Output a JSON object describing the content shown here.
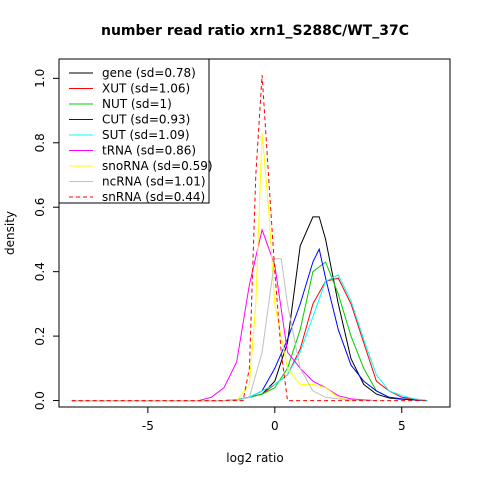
{
  "chart_data": {
    "type": "line",
    "title": "number read ratio xrn1_S288C/WT_37C",
    "xlabel": "log2 ratio",
    "ylabel": "density",
    "xlim": [
      -8.5,
      6.9
    ],
    "ylim": [
      -0.02,
      1.06
    ],
    "xticks": [
      -5,
      0,
      5
    ],
    "yticks": [
      0.0,
      0.2,
      0.4,
      0.6,
      0.8,
      1.0
    ],
    "xtick_labels": [
      "-5",
      "0",
      "5"
    ],
    "ytick_labels": [
      "0.0",
      "0.2",
      "0.4",
      "0.6",
      "0.8",
      "1.0"
    ],
    "grid": false,
    "legend_position": "top-left",
    "series": [
      {
        "name": "gene (sd=0.78)",
        "color": "#000000",
        "dash": "solid",
        "x": [
          -8,
          -2.5,
          -2,
          -1.5,
          -1,
          -0.5,
          0,
          0.5,
          1,
          1.5,
          1.75,
          2,
          2.5,
          3,
          3.5,
          4,
          4.5,
          5,
          5.5,
          6
        ],
        "y": [
          0,
          0,
          0,
          0.002,
          0.01,
          0.02,
          0.06,
          0.18,
          0.48,
          0.57,
          0.57,
          0.5,
          0.3,
          0.13,
          0.05,
          0.02,
          0.008,
          0.004,
          0.002,
          0
        ]
      },
      {
        "name": "XUT (sd=1.06)",
        "color": "#ff0000",
        "dash": "solid",
        "x": [
          -8,
          -2.5,
          -2,
          -1.5,
          -1,
          -0.5,
          0,
          0.5,
          1,
          1.5,
          2,
          2.5,
          3,
          3.5,
          4,
          4.5,
          5,
          5.5,
          6
        ],
        "y": [
          0,
          0,
          0,
          0.003,
          0.01,
          0.02,
          0.05,
          0.08,
          0.16,
          0.3,
          0.37,
          0.38,
          0.3,
          0.18,
          0.06,
          0.03,
          0.01,
          0.005,
          0
        ]
      },
      {
        "name": "NUT (sd=1)",
        "color": "#00cc00",
        "dash": "solid",
        "x": [
          -8,
          -2.5,
          -2,
          -1.5,
          -1,
          -0.5,
          0,
          0.5,
          1,
          1.5,
          2,
          2.5,
          3,
          3.5,
          4,
          4.5,
          5,
          5.5,
          6
        ],
        "y": [
          0,
          0,
          0,
          0.002,
          0.01,
          0.02,
          0.04,
          0.1,
          0.22,
          0.4,
          0.43,
          0.33,
          0.2,
          0.1,
          0.03,
          0.01,
          0.005,
          0.002,
          0
        ]
      },
      {
        "name": "CUT (sd=0.93)",
        "color": "#0000ff",
        "dash": "solid",
        "x": [
          -8,
          -2.5,
          -2,
          -1.5,
          -1,
          -0.5,
          0,
          0.5,
          1,
          1.5,
          1.75,
          2,
          2.5,
          3,
          3.5,
          4,
          4.5,
          5,
          5.5,
          6
        ],
        "y": [
          0,
          0,
          0,
          0.003,
          0.01,
          0.03,
          0.1,
          0.19,
          0.3,
          0.43,
          0.47,
          0.38,
          0.22,
          0.11,
          0.06,
          0.03,
          0.01,
          0.005,
          0.002,
          0
        ]
      },
      {
        "name": "SUT (sd=1.09)",
        "color": "#00ffff",
        "dash": "solid",
        "x": [
          -8,
          -2.5,
          -2,
          -1.5,
          -1,
          -0.5,
          0,
          0.5,
          1,
          1.5,
          2,
          2.5,
          3,
          3.5,
          4,
          4.5,
          5,
          5.5,
          6
        ],
        "y": [
          0,
          0,
          0,
          0.003,
          0.01,
          0.03,
          0.05,
          0.08,
          0.15,
          0.26,
          0.37,
          0.39,
          0.31,
          0.19,
          0.08,
          0.03,
          0.015,
          0.005,
          0
        ]
      },
      {
        "name": "tRNA (sd=0.86)",
        "color": "#ff00ff",
        "dash": "solid",
        "x": [
          -8,
          -3,
          -2.5,
          -2,
          -1.5,
          -1,
          -0.5,
          0,
          0.5,
          1,
          1.5,
          2,
          2.5,
          3,
          3.5,
          4
        ],
        "y": [
          0,
          0,
          0.01,
          0.04,
          0.12,
          0.36,
          0.53,
          0.42,
          0.15,
          0.1,
          0.06,
          0.04,
          0.015,
          0.005,
          0.002,
          0
        ]
      },
      {
        "name": "snoRNA (sd=0.59)",
        "color": "#ffff00",
        "dash": "solid",
        "x": [
          -8,
          -1.5,
          -1,
          -0.75,
          -0.5,
          -0.25,
          0,
          0.5,
          1,
          1.5,
          2,
          2.5,
          3
        ],
        "y": [
          0,
          0,
          0.05,
          0.3,
          0.83,
          0.6,
          0.3,
          0.1,
          0.05,
          0.05,
          0.04,
          0.01,
          0
        ]
      },
      {
        "name": "ncRNA (sd=1.01)",
        "color": "#c0c0c0",
        "dash": "solid",
        "x": [
          -8,
          -1.5,
          -1,
          -0.5,
          0,
          0.25,
          0.5,
          1,
          1.5,
          2,
          2.5,
          3,
          3.5,
          4
        ],
        "y": [
          0,
          0,
          0.01,
          0.15,
          0.44,
          0.44,
          0.3,
          0.1,
          0.03,
          0.01,
          0.005,
          0.002,
          0,
          0
        ]
      },
      {
        "name": "snRNA (sd=0.44)",
        "color": "#ff0000",
        "dash": "dashed",
        "x": [
          -8,
          -1.25,
          -1,
          -0.75,
          -0.5,
          -0.25,
          0,
          0.25,
          0.5,
          0.75,
          1,
          6
        ],
        "y": [
          0,
          0,
          0.1,
          0.7,
          1.01,
          0.7,
          0.4,
          0.15,
          0,
          0,
          0,
          0
        ]
      }
    ]
  }
}
